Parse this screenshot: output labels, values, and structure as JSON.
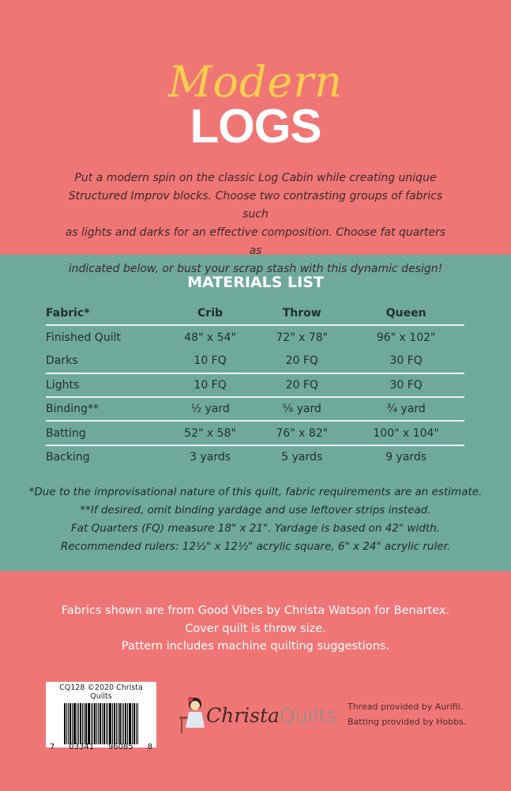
{
  "colors": {
    "pink": "#f07676",
    "teal": "#6fa99c",
    "yellow": "#f9cf4a"
  },
  "title": {
    "script": "Modern",
    "main": "LOGS"
  },
  "intro": [
    "Put a modern spin on the classic Log Cabin while creating unique",
    "Structured Improv blocks. Choose two contrasting groups of fabrics such",
    "as lights and darks for an effective composition. Choose fat quarters as",
    "indicated below, or bust your scrap stash with this dynamic design!"
  ],
  "materials": {
    "title": "MATERIALS LIST",
    "headers": [
      "Fabric*",
      "Crib",
      "Throw",
      "Queen"
    ],
    "rows": [
      [
        "Finished Quilt",
        "48\" x 54\"",
        "72\" x 78\"",
        "96\" x 102\""
      ],
      [
        "Darks",
        "10 FQ",
        "20 FQ",
        "30 FQ"
      ],
      [
        "Lights",
        "10 FQ",
        "20 FQ",
        "30 FQ"
      ],
      [
        "Binding**",
        "½ yard",
        "⅝ yard",
        "¾ yard"
      ],
      [
        "Batting",
        "52\" x 58\"",
        "76\" x 82\"",
        "100\" x 104\""
      ],
      [
        "Backing",
        "3  yards",
        "5 yards",
        "9 yards"
      ]
    ]
  },
  "notes": [
    "*Due to the improvisational nature of this quilt, fabric requirements are an estimate.",
    "**If desired, omit binding yardage and use leftover strips instead.",
    "Fat Quarters (FQ) measure 18\" x 21\". Yardage is based on 42\" width.",
    "Recommended rulers: 12½\" x 12½\" acrylic square, 6\" x 24\" acrylic ruler."
  ],
  "credits": [
    "Fabrics shown are from Good Vibes by Christa Watson for Benartex.",
    "Cover quilt is throw size.",
    "Pattern includes machine quilting suggestions."
  ],
  "barcode": {
    "label": "CQ128 ©2020 Christa Quilts",
    "digits": [
      "7",
      "03341",
      "96085",
      "8"
    ]
  },
  "logo": {
    "part1": "Christa",
    "part2": "Quilts"
  },
  "provided": [
    "Thread provided by Aurifil.",
    "Batting provided by Hobbs."
  ]
}
